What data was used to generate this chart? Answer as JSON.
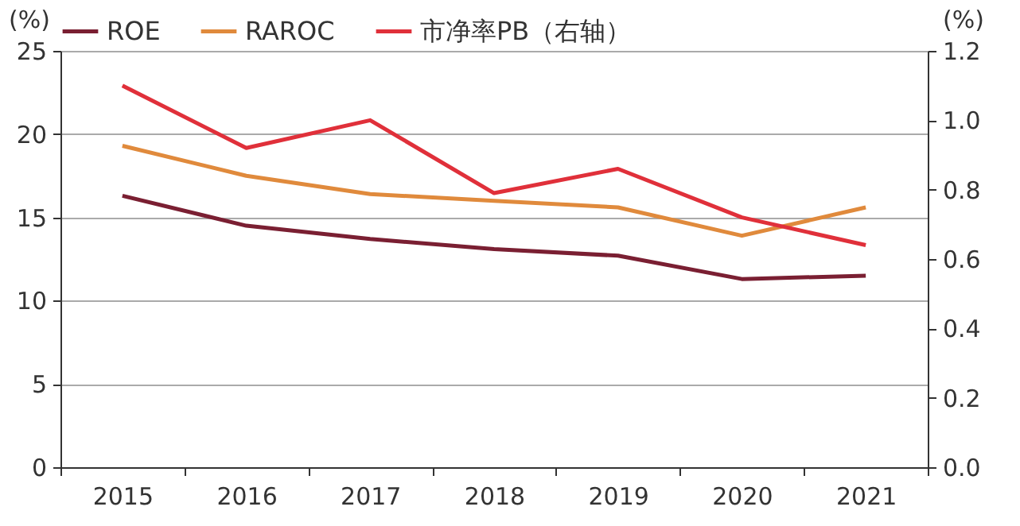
{
  "chart_data": {
    "type": "line",
    "categories": [
      "2015",
      "2016",
      "2017",
      "2018",
      "2019",
      "2020",
      "2021"
    ],
    "series": [
      {
        "name": "ROE",
        "color": "#7a1f32",
        "values": [
          16.3,
          14.5,
          13.7,
          13.1,
          12.7,
          11.3,
          11.5
        ]
      },
      {
        "name": "RAROC",
        "color": "#e08a3c",
        "values": [
          19.3,
          17.5,
          16.4,
          16.0,
          15.6,
          13.9,
          15.6
        ]
      },
      {
        "name": "市净率PB（右轴）",
        "color": "#e0303a",
        "axis": "y2",
        "values": [
          1.1,
          0.92,
          1.0,
          0.79,
          0.86,
          0.72,
          0.64
        ]
      }
    ],
    "ylabel": "(%)",
    "y2label": "(%)",
    "ylim": [
      0,
      25
    ],
    "yticks": [
      0,
      5,
      10,
      15,
      20,
      25
    ],
    "y2lim": [
      0,
      1.2
    ],
    "y2ticks": [
      {
        "value": 0,
        "label": "0.0"
      },
      0.2,
      0.4,
      0.6,
      0.8,
      {
        "value": 1,
        "label": "1.0"
      },
      1.2
    ],
    "grid": "y",
    "legend": "top",
    "marker": "none",
    "line_style": "solid"
  }
}
